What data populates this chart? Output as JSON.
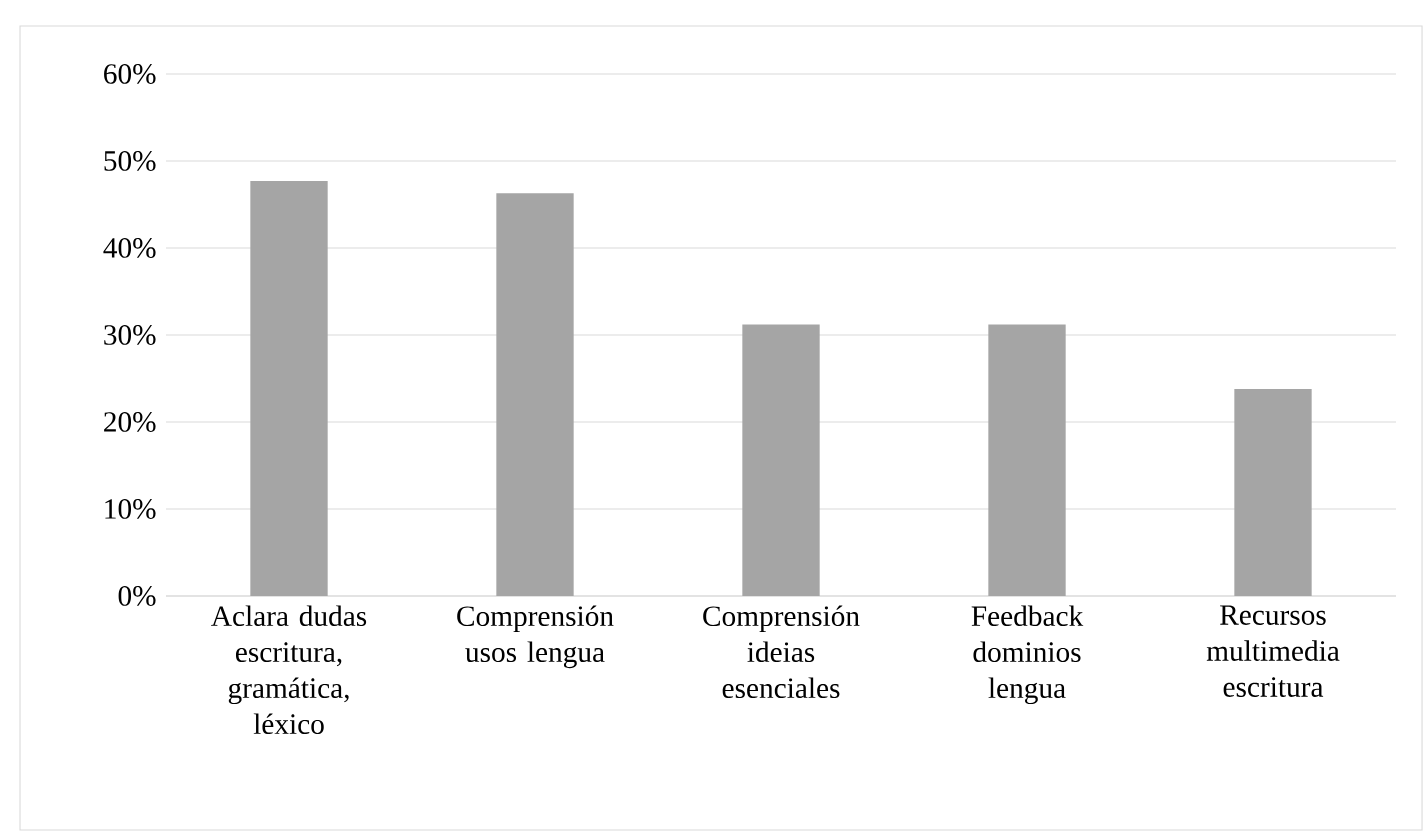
{
  "chart_data": {
    "type": "bar",
    "categories": [
      "Aclara dudas escritura, gramática, léxico",
      "Comprensión usos lengua",
      "Comprensión ideias esenciales",
      "Feedback dominios lengua",
      "Recursos multimedia escritura"
    ],
    "values": [
      47.7,
      46.3,
      31.2,
      31.2,
      23.8
    ],
    "color": "#a5a5a5",
    "ylim": [
      0,
      60
    ],
    "yticks": [
      {
        "value": 0,
        "label": "0%"
      },
      {
        "value": 10,
        "label": "10%"
      },
      {
        "value": 20,
        "label": "20%"
      },
      {
        "value": 30,
        "label": "30%"
      },
      {
        "value": 40,
        "label": "40%"
      },
      {
        "value": 50,
        "label": "50%"
      },
      {
        "value": 60,
        "label": "60%"
      }
    ],
    "grid": "y"
  }
}
